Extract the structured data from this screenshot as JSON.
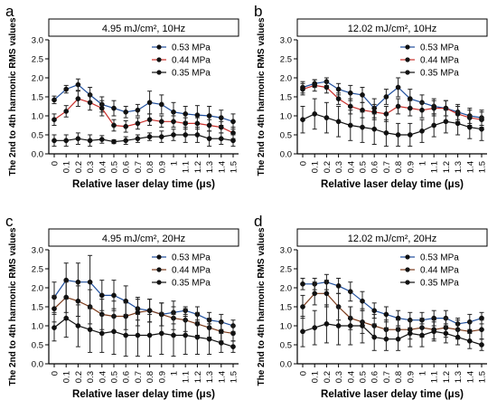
{
  "chart_data": [
    {
      "type": "line",
      "panel_label": "a",
      "title": "4.95 mJ/cm², 10Hz",
      "xlabel": "Relative laser delay time (μs)",
      "ylabel": "The 2nd to 4th harmonic RMS values",
      "ylim": [
        0,
        3.0
      ],
      "y_ticks": [
        "0.0",
        "0.5",
        "1.0",
        "1.5",
        "2.0",
        "2.5",
        "3.0"
      ],
      "categories": [
        "0",
        "0.1",
        "0.2",
        "0.3",
        "0.4",
        "0.5",
        "0.6",
        "0.7",
        "0.8",
        "0.9",
        "1",
        "1.1",
        "1.2",
        "1.3",
        "1.4",
        "1.5"
      ],
      "legend_position": "top-right",
      "series": [
        {
          "name": "0.53 MPa",
          "color": "#1f4e9c",
          "values": [
            1.42,
            1.7,
            1.82,
            1.55,
            1.3,
            1.2,
            1.1,
            1.15,
            1.35,
            1.3,
            1.1,
            1.05,
            1.02,
            1.0,
            0.95,
            0.85
          ],
          "errors": [
            0.1,
            0.1,
            0.15,
            0.2,
            0.2,
            0.2,
            0.15,
            0.15,
            0.3,
            0.25,
            0.25,
            0.2,
            0.25,
            0.25,
            0.2,
            0.2
          ]
        },
        {
          "name": "0.44 MPa",
          "color": "#c9302c",
          "values": [
            0.9,
            1.12,
            1.45,
            1.35,
            1.2,
            0.75,
            0.72,
            0.8,
            0.9,
            0.85,
            0.85,
            0.8,
            0.8,
            0.75,
            0.7,
            0.55
          ],
          "errors": [
            0.15,
            0.15,
            0.2,
            0.2,
            0.2,
            0.15,
            0.15,
            0.15,
            0.15,
            0.15,
            0.15,
            0.15,
            0.15,
            0.15,
            0.15,
            0.15
          ]
        },
        {
          "name": "0.35 MPa",
          "color": "#111111",
          "values": [
            0.35,
            0.35,
            0.4,
            0.35,
            0.38,
            0.32,
            0.35,
            0.4,
            0.45,
            0.45,
            0.5,
            0.5,
            0.5,
            0.4,
            0.4,
            0.35
          ],
          "errors": [
            0.15,
            0.15,
            0.15,
            0.15,
            0.1,
            0.05,
            0.1,
            0.1,
            0.1,
            0.15,
            0.15,
            0.2,
            0.2,
            0.2,
            0.15,
            0.15
          ]
        }
      ]
    },
    {
      "type": "line",
      "panel_label": "b",
      "title": "12.02 mJ/cm², 10Hz",
      "xlabel": "Relative laser delay time (μs)",
      "ylabel": "The 2nd to 4th harmonic RMS values",
      "ylim": [
        0,
        3.0
      ],
      "y_ticks": [
        "0.0",
        "0.5",
        "1.0",
        "1.5",
        "2.0",
        "2.5",
        "3.0"
      ],
      "categories": [
        "0",
        "0.1",
        "0.2",
        "0.3",
        "0.4",
        "0.5",
        "0.6",
        "0.7",
        "0.8",
        "0.9",
        "1",
        "1.1",
        "1.2",
        "1.3",
        "1.4",
        "1.5"
      ],
      "legend_position": "top-right",
      "series": [
        {
          "name": "0.53 MPa",
          "color": "#1f4e9c",
          "values": [
            1.75,
            1.85,
            1.9,
            1.7,
            1.6,
            1.55,
            1.2,
            1.5,
            1.75,
            1.45,
            1.35,
            1.25,
            1.2,
            1.1,
            1.0,
            0.95
          ],
          "errors": [
            0.15,
            0.1,
            0.1,
            0.15,
            0.2,
            0.2,
            0.25,
            0.2,
            0.25,
            0.25,
            0.2,
            0.2,
            0.2,
            0.2,
            0.2,
            0.2
          ]
        },
        {
          "name": "0.44 MPa",
          "color": "#c9302c",
          "values": [
            1.7,
            1.8,
            1.75,
            1.45,
            1.25,
            1.15,
            1.1,
            1.05,
            1.25,
            1.2,
            1.15,
            1.2,
            1.2,
            1.05,
            0.95,
            0.9
          ],
          "errors": [
            0.15,
            0.15,
            0.15,
            0.15,
            0.2,
            0.2,
            0.2,
            0.2,
            0.2,
            0.2,
            0.2,
            0.2,
            0.2,
            0.2,
            0.2,
            0.2
          ]
        },
        {
          "name": "0.35 MPa",
          "color": "#111111",
          "values": [
            0.9,
            1.05,
            0.95,
            0.85,
            0.75,
            0.7,
            0.65,
            0.55,
            0.5,
            0.5,
            0.6,
            0.75,
            0.85,
            0.8,
            0.7,
            0.65
          ],
          "errors": [
            0.35,
            0.4,
            0.4,
            0.4,
            0.4,
            0.4,
            0.4,
            0.35,
            0.3,
            0.3,
            0.3,
            0.3,
            0.3,
            0.3,
            0.3,
            0.3
          ]
        }
      ]
    },
    {
      "type": "line",
      "panel_label": "c",
      "title": "4.95 mJ/cm², 20Hz",
      "xlabel": "Relative laser delay time (μs)",
      "ylabel": "The 2nd to 4th harmonic RMS values",
      "ylim": [
        0,
        3.0
      ],
      "y_ticks": [
        "0.0",
        "0.5",
        "1.0",
        "1.5",
        "2.0",
        "2.5",
        "3.0"
      ],
      "categories": [
        "0",
        "0.1",
        "0.2",
        "0.3",
        "0.4",
        "0.5",
        "0.6",
        "0.7",
        "0.8",
        "0.9",
        "1",
        "1.1",
        "1.2",
        "1.3",
        "1.4",
        "1.5"
      ],
      "legend_position": "top-right",
      "series": [
        {
          "name": "0.53 MPa",
          "color": "#1f4e9c",
          "values": [
            1.75,
            2.2,
            2.15,
            2.15,
            1.8,
            1.8,
            1.65,
            1.45,
            1.4,
            1.3,
            1.35,
            1.4,
            1.3,
            1.15,
            1.1,
            1.0
          ],
          "errors": [
            0.4,
            0.45,
            0.5,
            0.7,
            0.4,
            0.4,
            0.4,
            0.3,
            0.3,
            0.3,
            0.3,
            0.1,
            0.2,
            0.2,
            0.2,
            0.15
          ]
        },
        {
          "name": "0.44 MPa",
          "color": "#7a3a1a",
          "values": [
            1.45,
            1.75,
            1.65,
            1.5,
            1.3,
            1.25,
            1.25,
            1.35,
            1.4,
            1.3,
            1.2,
            1.15,
            1.05,
            0.95,
            0.85,
            0.8
          ],
          "errors": [
            0.35,
            0.4,
            0.4,
            0.45,
            0.4,
            0.4,
            0.35,
            0.35,
            0.3,
            0.3,
            0.3,
            0.3,
            0.3,
            0.25,
            0.25,
            0.2
          ]
        },
        {
          "name": "0.35 MPa",
          "color": "#111111",
          "values": [
            0.95,
            1.2,
            1.0,
            0.9,
            0.8,
            0.85,
            0.75,
            0.75,
            0.75,
            0.8,
            0.75,
            0.75,
            0.7,
            0.65,
            0.55,
            0.45
          ],
          "errors": [
            0.35,
            0.5,
            0.55,
            0.6,
            0.5,
            0.6,
            0.55,
            0.55,
            0.55,
            0.55,
            0.55,
            0.5,
            0.45,
            0.4,
            0.25,
            0.15
          ]
        }
      ]
    },
    {
      "type": "line",
      "panel_label": "d",
      "title": "12.02 mJ/cm², 20Hz",
      "xlabel": "Relative laser delay time (μs)",
      "ylabel": "The 2nd to 4th harmonic RMS values",
      "ylim": [
        0,
        3.0
      ],
      "y_ticks": [
        "0.0",
        "0.5",
        "1.0",
        "1.5",
        "2.0",
        "2.5",
        "3.0"
      ],
      "categories": [
        "0",
        "0.1",
        "0.2",
        "0.3",
        "0.4",
        "0.5",
        "0.6",
        "0.7",
        "0.8",
        "0.9",
        "1",
        "1.1",
        "1.2",
        "1.3",
        "1.4",
        "1.5"
      ],
      "legend_position": "top-right",
      "series": [
        {
          "name": "0.53 MPa",
          "color": "#1f4e9c",
          "values": [
            2.1,
            2.1,
            2.15,
            2.05,
            1.9,
            1.65,
            1.4,
            1.3,
            1.2,
            1.15,
            1.15,
            1.2,
            1.2,
            1.05,
            1.1,
            1.2
          ],
          "errors": [
            0.15,
            0.15,
            0.2,
            0.2,
            0.25,
            0.25,
            0.2,
            0.2,
            0.2,
            0.2,
            0.2,
            0.2,
            0.2,
            0.15,
            0.2,
            0.15
          ]
        },
        {
          "name": "0.44 MPa",
          "color": "#7a3a1a",
          "values": [
            1.5,
            1.85,
            1.85,
            1.5,
            1.2,
            1.1,
            1.0,
            0.9,
            0.9,
            0.9,
            0.95,
            0.9,
            0.95,
            0.9,
            0.85,
            0.9
          ],
          "errors": [
            0.3,
            0.3,
            0.35,
            0.35,
            0.3,
            0.3,
            0.3,
            0.25,
            0.25,
            0.25,
            0.25,
            0.25,
            0.25,
            0.25,
            0.25,
            0.25
          ]
        },
        {
          "name": "0.35 MPa",
          "color": "#111111",
          "values": [
            0.85,
            0.95,
            1.05,
            1.0,
            1.0,
            1.0,
            0.7,
            0.65,
            0.65,
            0.8,
            0.75,
            0.85,
            0.8,
            0.7,
            0.6,
            0.5
          ],
          "errors": [
            0.4,
            0.45,
            0.5,
            0.5,
            0.5,
            0.45,
            0.35,
            0.3,
            0.3,
            0.35,
            0.3,
            0.25,
            0.25,
            0.2,
            0.2,
            0.15
          ]
        }
      ]
    }
  ]
}
